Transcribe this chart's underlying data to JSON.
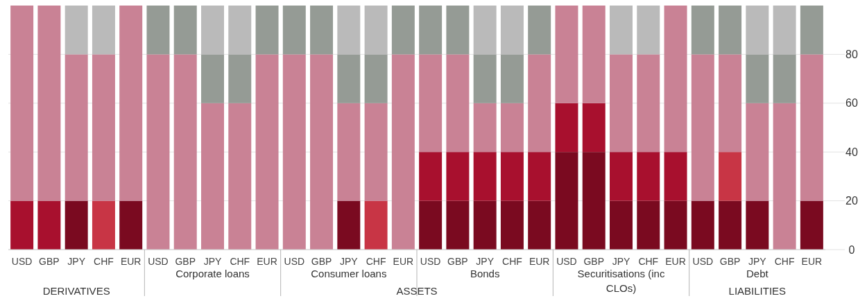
{
  "chart_data": {
    "type": "bar",
    "stacked": true,
    "categories": [
      "USD",
      "GBP",
      "JPY",
      "CHF",
      "EUR",
      "USD",
      "GBP",
      "JPY",
      "CHF",
      "EUR",
      "USD",
      "GBP",
      "JPY",
      "CHF",
      "EUR",
      "USD",
      "GBP",
      "JPY",
      "CHF",
      "EUR",
      "USD",
      "GBP",
      "JPY",
      "CHF",
      "EUR",
      "USD",
      "GBP",
      "JPY",
      "CHF",
      "EUR"
    ],
    "series": [
      {
        "color": "#7a0a20",
        "values": [
          0,
          0,
          20,
          0,
          20,
          0,
          0,
          0,
          0,
          0,
          0,
          0,
          20,
          0,
          0,
          20,
          20,
          20,
          20,
          20,
          40,
          40,
          20,
          20,
          20,
          20,
          20,
          20,
          0,
          20
        ]
      },
      {
        "color": "#a8102e",
        "values": [
          20,
          20,
          0,
          0,
          0,
          0,
          0,
          0,
          0,
          0,
          0,
          0,
          0,
          0,
          0,
          20,
          20,
          20,
          20,
          20,
          20,
          20,
          20,
          20,
          20,
          0,
          0,
          0,
          0,
          0
        ]
      },
      {
        "color": "#c83545",
        "values": [
          0,
          0,
          0,
          20,
          0,
          0,
          0,
          0,
          0,
          0,
          0,
          0,
          0,
          20,
          0,
          0,
          0,
          0,
          0,
          0,
          0,
          0,
          0,
          0,
          0,
          0,
          20,
          0,
          0,
          0
        ]
      },
      {
        "color": "#c98295",
        "values": [
          80,
          80,
          60,
          60,
          80,
          80,
          80,
          60,
          60,
          80,
          80,
          80,
          40,
          40,
          80,
          40,
          40,
          20,
          20,
          40,
          40,
          40,
          40,
          40,
          60,
          60,
          40,
          40,
          60,
          60
        ]
      },
      {
        "color": "#959b95",
        "values": [
          0,
          0,
          0,
          0,
          0,
          20,
          20,
          20,
          20,
          20,
          20,
          20,
          20,
          20,
          20,
          20,
          20,
          20,
          20,
          20,
          0,
          0,
          0,
          0,
          0,
          20,
          20,
          20,
          20,
          20
        ]
      },
      {
        "color": "#bababa",
        "values": [
          0,
          0,
          20,
          20,
          0,
          0,
          0,
          20,
          20,
          0,
          0,
          0,
          20,
          20,
          0,
          0,
          0,
          20,
          20,
          0,
          0,
          0,
          20,
          20,
          0,
          0,
          0,
          20,
          20,
          0
        ]
      }
    ],
    "ylim": [
      0,
      100
    ],
    "yticks": [
      0,
      20,
      40,
      60,
      80
    ],
    "grid": "y",
    "annotations": [
      "DERIVATIVES",
      "Corporate loans",
      "Consumer loans",
      "Bonds",
      "Securitisations (inc CLOs)",
      "Debt",
      "ASSETS",
      "LIABILITIES"
    ]
  }
}
